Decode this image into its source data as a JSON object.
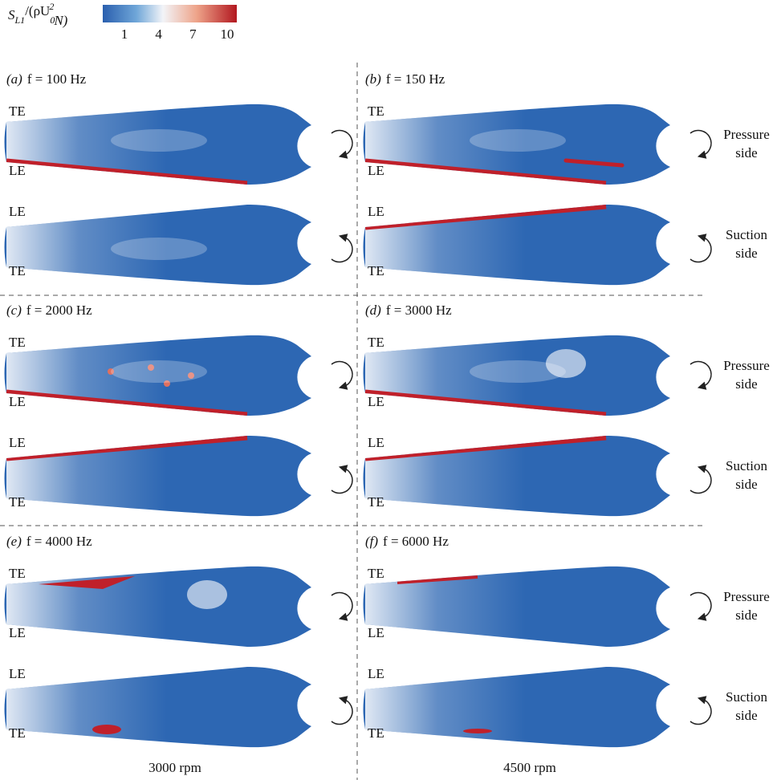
{
  "colorbar": {
    "label": [
      "S",
      "L1",
      "/(ρU",
      "0",
      "2",
      "N)"
    ],
    "min": 1,
    "max": 10,
    "ticks": [
      1,
      4,
      7,
      10
    ]
  },
  "panels": [
    {
      "letter": "(a)",
      "title": "f = 100 Hz",
      "blades": [
        {
          "top": "TE",
          "bottom": "LE"
        },
        {
          "top": "LE",
          "bottom": "TE"
        }
      ]
    },
    {
      "letter": "(b)",
      "title": "f = 150 Hz",
      "blades": [
        {
          "top": "TE",
          "bottom": "LE"
        },
        {
          "top": "LE",
          "bottom": "TE"
        }
      ]
    },
    {
      "letter": "(c)",
      "title": "f = 2000 Hz",
      "blades": [
        {
          "top": "TE",
          "bottom": "LE"
        },
        {
          "top": "LE",
          "bottom": "TE"
        }
      ]
    },
    {
      "letter": "(d)",
      "title": "f = 3000 Hz",
      "blades": [
        {
          "top": "TE",
          "bottom": "LE"
        },
        {
          "top": "LE",
          "bottom": "TE"
        }
      ]
    },
    {
      "letter": "(e)",
      "title": "f = 4000 Hz",
      "blades": [
        {
          "top": "TE",
          "bottom": "LE"
        },
        {
          "top": "LE",
          "bottom": "TE"
        }
      ]
    },
    {
      "letter": "(f)",
      "title": "f = 6000 Hz",
      "blades": [
        {
          "top": "TE",
          "bottom": "LE"
        },
        {
          "top": "LE",
          "bottom": "TE"
        }
      ]
    }
  ],
  "side_labels": [
    {
      "pressure": [
        "Pressure",
        "side"
      ],
      "suction": [
        "Suction",
        "side"
      ]
    },
    {
      "pressure": [
        "Pressure",
        "side"
      ],
      "suction": [
        "Suction",
        "side"
      ]
    },
    {
      "pressure": [
        "Pressure",
        "side"
      ],
      "suction": [
        "Suction",
        "side"
      ]
    }
  ],
  "columns": [
    "3000 rpm",
    "4500 rpm"
  ]
}
